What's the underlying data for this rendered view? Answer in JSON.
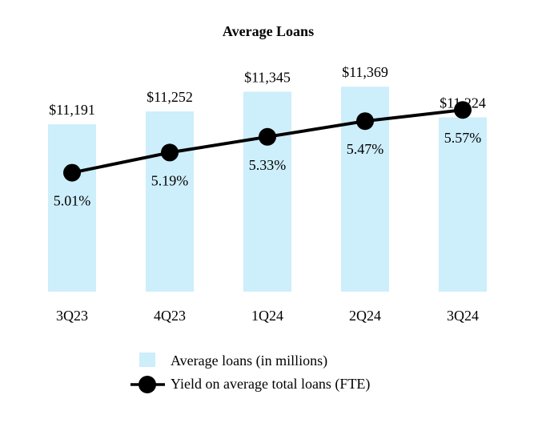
{
  "chart_data": {
    "type": "bar+line",
    "title": "Average Loans",
    "categories": [
      "3Q23",
      "4Q23",
      "1Q24",
      "2Q24",
      "3Q24"
    ],
    "series": [
      {
        "name": "Average loans (in millions)",
        "kind": "bar",
        "values": [
          11191,
          11252,
          11345,
          11369,
          11224
        ],
        "labels": [
          "$11,191",
          "$11,252",
          "$11,345",
          "$11,369",
          "$11,224"
        ],
        "color": "#cdeefb"
      },
      {
        "name": "Yield on average total loans (FTE)",
        "kind": "line",
        "values": [
          5.01,
          5.19,
          5.33,
          5.47,
          5.57
        ],
        "labels": [
          "5.01%",
          "5.19%",
          "5.33%",
          "5.47%",
          "5.57%"
        ],
        "color": "#000000"
      }
    ],
    "bar_axis": {
      "min": 10400,
      "max": 11400
    },
    "line_axis": {
      "min": 4.5,
      "max": 5.8
    },
    "legend_position": "bottom-center",
    "grid": false
  }
}
